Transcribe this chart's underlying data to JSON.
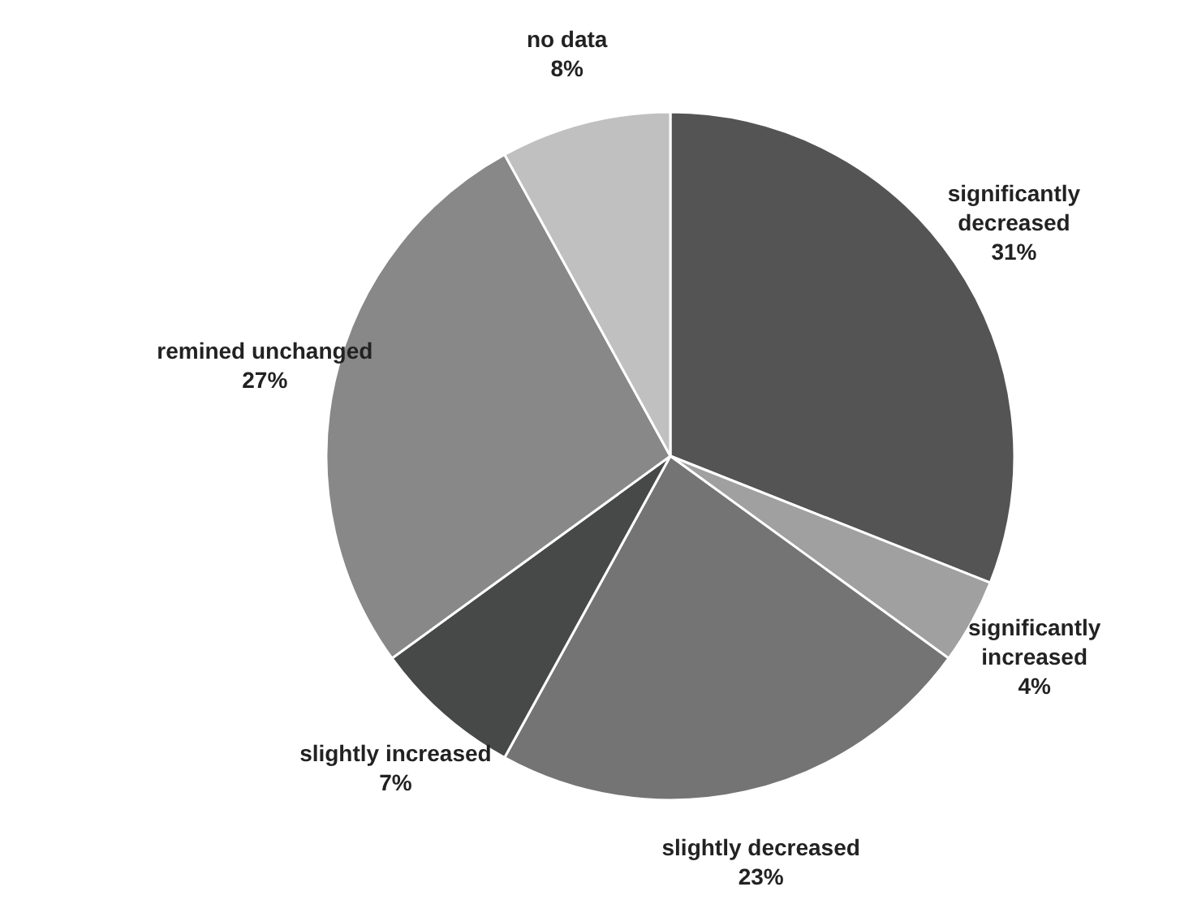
{
  "chart_data": {
    "type": "pie",
    "categories": [
      "significantly decreased",
      "significantly increased",
      "slightly decreased",
      "slightly increased",
      "remined unchanged",
      "no data"
    ],
    "values": [
      31,
      4,
      23,
      7,
      27,
      8
    ],
    "value_labels": [
      "31%",
      "4%",
      "23%",
      "7%",
      "27%",
      "8%"
    ],
    "colors": [
      "#545454",
      "#a0a0a0",
      "#747474",
      "#474948",
      "#888888",
      "#c0c0c0"
    ],
    "legend": false
  }
}
